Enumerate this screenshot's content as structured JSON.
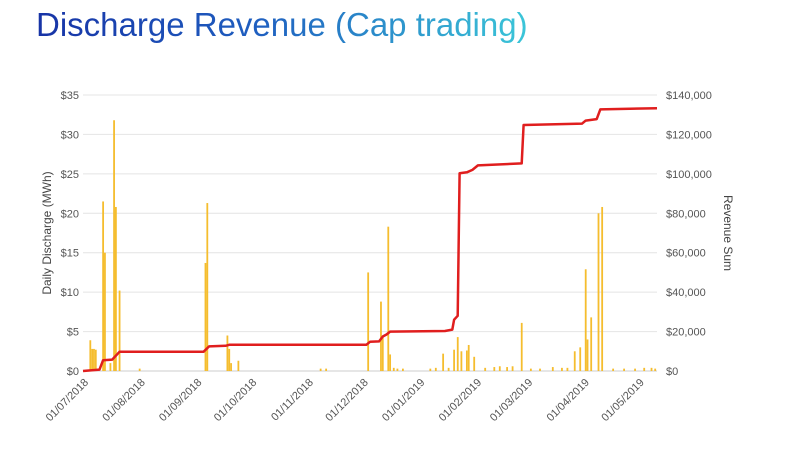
{
  "title": "Discharge Revenue (Cap trading)",
  "chart_data": {
    "type": "bar+line",
    "title": "Discharge Revenue (Cap trading)",
    "x_start_date": "01/07/2018",
    "x_unit": "days since 01/07/2018",
    "xlim": [
      0,
      314
    ],
    "xticks": [
      {
        "day": 0,
        "label": "01/07/2018"
      },
      {
        "day": 31,
        "label": "01/08/2018"
      },
      {
        "day": 62,
        "label": "01/09/2018"
      },
      {
        "day": 92,
        "label": "01/10/2018"
      },
      {
        "day": 123,
        "label": "01/11/2018"
      },
      {
        "day": 153,
        "label": "01/12/2018"
      },
      {
        "day": 184,
        "label": "01/01/2019"
      },
      {
        "day": 215,
        "label": "01/02/2019"
      },
      {
        "day": 243,
        "label": "01/03/2019"
      },
      {
        "day": 274,
        "label": "01/04/2019"
      },
      {
        "day": 304,
        "label": "01/05/2019"
      }
    ],
    "y_left": {
      "label": "Daily Discharge (MWh)",
      "ylim": [
        0,
        35
      ],
      "ticks": [
        "$0",
        "$5",
        "$10",
        "$15",
        "$20",
        "$25",
        "$30",
        "$35"
      ]
    },
    "y_right": {
      "label": "Revenue Sum",
      "ylim": [
        0,
        140000
      ],
      "ticks": [
        "$0",
        "$20,000",
        "$40,000",
        "$60,000",
        "$80,000",
        "$100,000",
        "$120,000",
        "$140,000"
      ]
    },
    "grid": true,
    "series": [
      {
        "name": "Daily Discharge",
        "type": "bar",
        "axis": "left",
        "color": "#f5bd2e",
        "points": [
          [
            4,
            3.9
          ],
          [
            5,
            2.8
          ],
          [
            6,
            2.8
          ],
          [
            7,
            2.7
          ],
          [
            11,
            21.5
          ],
          [
            12,
            15
          ],
          [
            15,
            1
          ],
          [
            17,
            31.8
          ],
          [
            18,
            20.8
          ],
          [
            20,
            10.2
          ],
          [
            31,
            0.3
          ],
          [
            67,
            13.7
          ],
          [
            68,
            21.3
          ],
          [
            79,
            4.5
          ],
          [
            80,
            2.8
          ],
          [
            81,
            1
          ],
          [
            85,
            1.3
          ],
          [
            130,
            0.3
          ],
          [
            133,
            0.3
          ],
          [
            156,
            12.5
          ],
          [
            163,
            8.8
          ],
          [
            164,
            4.5
          ],
          [
            167,
            18.3
          ],
          [
            168,
            2.1
          ],
          [
            170,
            0.4
          ],
          [
            172,
            0.3
          ],
          [
            175,
            0.3
          ],
          [
            190,
            0.3
          ],
          [
            193,
            0.4
          ],
          [
            197,
            2.2
          ],
          [
            200,
            0.4
          ],
          [
            203,
            2.7
          ],
          [
            205,
            4.3
          ],
          [
            207,
            2.5
          ],
          [
            210,
            2.6
          ],
          [
            211,
            3.3
          ],
          [
            214,
            1.8
          ],
          [
            220,
            0.4
          ],
          [
            225,
            0.5
          ],
          [
            228,
            0.6
          ],
          [
            232,
            0.5
          ],
          [
            235,
            0.6
          ],
          [
            240,
            6.1
          ],
          [
            245,
            0.3
          ],
          [
            250,
            0.3
          ],
          [
            257,
            0.5
          ],
          [
            262,
            0.4
          ],
          [
            265,
            0.4
          ],
          [
            269,
            2.5
          ],
          [
            272,
            3
          ],
          [
            275,
            12.9
          ],
          [
            276,
            4
          ],
          [
            278,
            6.8
          ],
          [
            282,
            20
          ],
          [
            284,
            20.8
          ],
          [
            290,
            0.3
          ],
          [
            296,
            0.3
          ],
          [
            302,
            0.3
          ],
          [
            307,
            0.4
          ],
          [
            311,
            0.4
          ],
          [
            313,
            0.3
          ]
        ]
      },
      {
        "name": "Revenue Sum",
        "type": "line",
        "axis": "right",
        "color": "#e01e1e",
        "points": [
          [
            0,
            0
          ],
          [
            9,
            700
          ],
          [
            11,
            5500
          ],
          [
            16,
            5800
          ],
          [
            20,
            9800
          ],
          [
            66,
            9800
          ],
          [
            69,
            12500
          ],
          [
            78,
            12800
          ],
          [
            80,
            13300
          ],
          [
            155,
            13300
          ],
          [
            157,
            14800
          ],
          [
            162,
            15000
          ],
          [
            164,
            17500
          ],
          [
            166,
            18500
          ],
          [
            168,
            20000
          ],
          [
            198,
            20300
          ],
          [
            202,
            21000
          ],
          [
            203,
            26000
          ],
          [
            205,
            28000
          ],
          [
            206,
            100300
          ],
          [
            210,
            100800
          ],
          [
            213,
            102000
          ],
          [
            216,
            104300
          ],
          [
            240,
            105300
          ],
          [
            241,
            124800
          ],
          [
            273,
            125500
          ],
          [
            275,
            127000
          ],
          [
            281,
            127800
          ],
          [
            283,
            132700
          ],
          [
            314,
            133300
          ]
        ]
      }
    ]
  }
}
